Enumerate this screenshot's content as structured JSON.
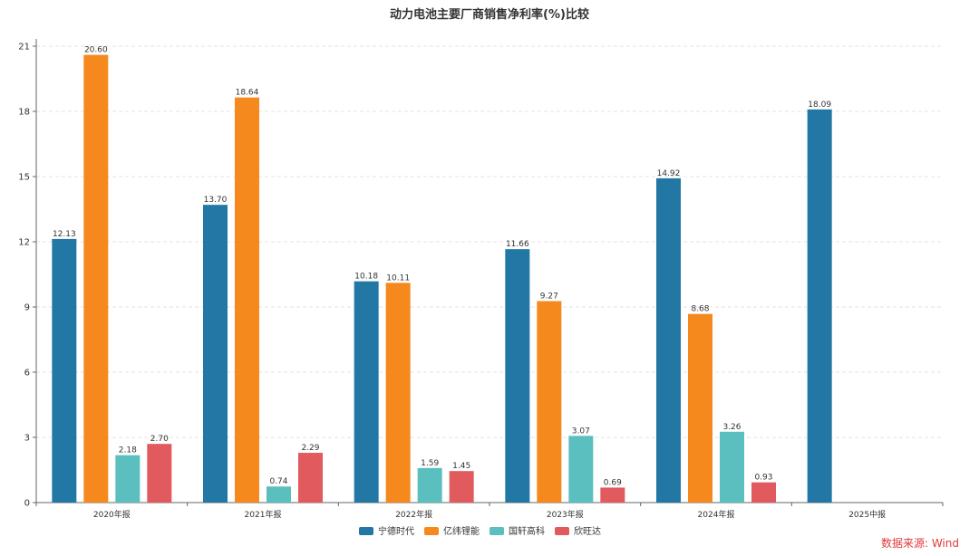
{
  "chart_data": {
    "type": "bar",
    "title": "动力电池主要厂商销售净利率(%)比较",
    "categories": [
      "2020年报",
      "2021年报",
      "2022年报",
      "2023年报",
      "2024年报",
      "2025中报"
    ],
    "series": [
      {
        "name": "宁德时代",
        "color": "#2277a4",
        "values": [
          12.13,
          13.7,
          10.18,
          11.66,
          14.92,
          18.09
        ]
      },
      {
        "name": "亿纬锂能",
        "color": "#f5891e",
        "values": [
          20.6,
          18.64,
          10.11,
          9.27,
          8.68,
          null
        ]
      },
      {
        "name": "国轩高科",
        "color": "#5bbfbf",
        "values": [
          2.18,
          0.74,
          1.59,
          3.07,
          3.26,
          null
        ]
      },
      {
        "name": "欣旺达",
        "color": "#e05a5e",
        "values": [
          2.7,
          2.29,
          1.45,
          0.69,
          0.93,
          null
        ]
      }
    ],
    "ylim": [
      0,
      21
    ],
    "yticks": [
      0,
      3,
      6,
      9,
      12,
      15,
      18,
      21
    ],
    "grid": true,
    "legend": "bottom-center",
    "source": "数据来源: Wind"
  }
}
